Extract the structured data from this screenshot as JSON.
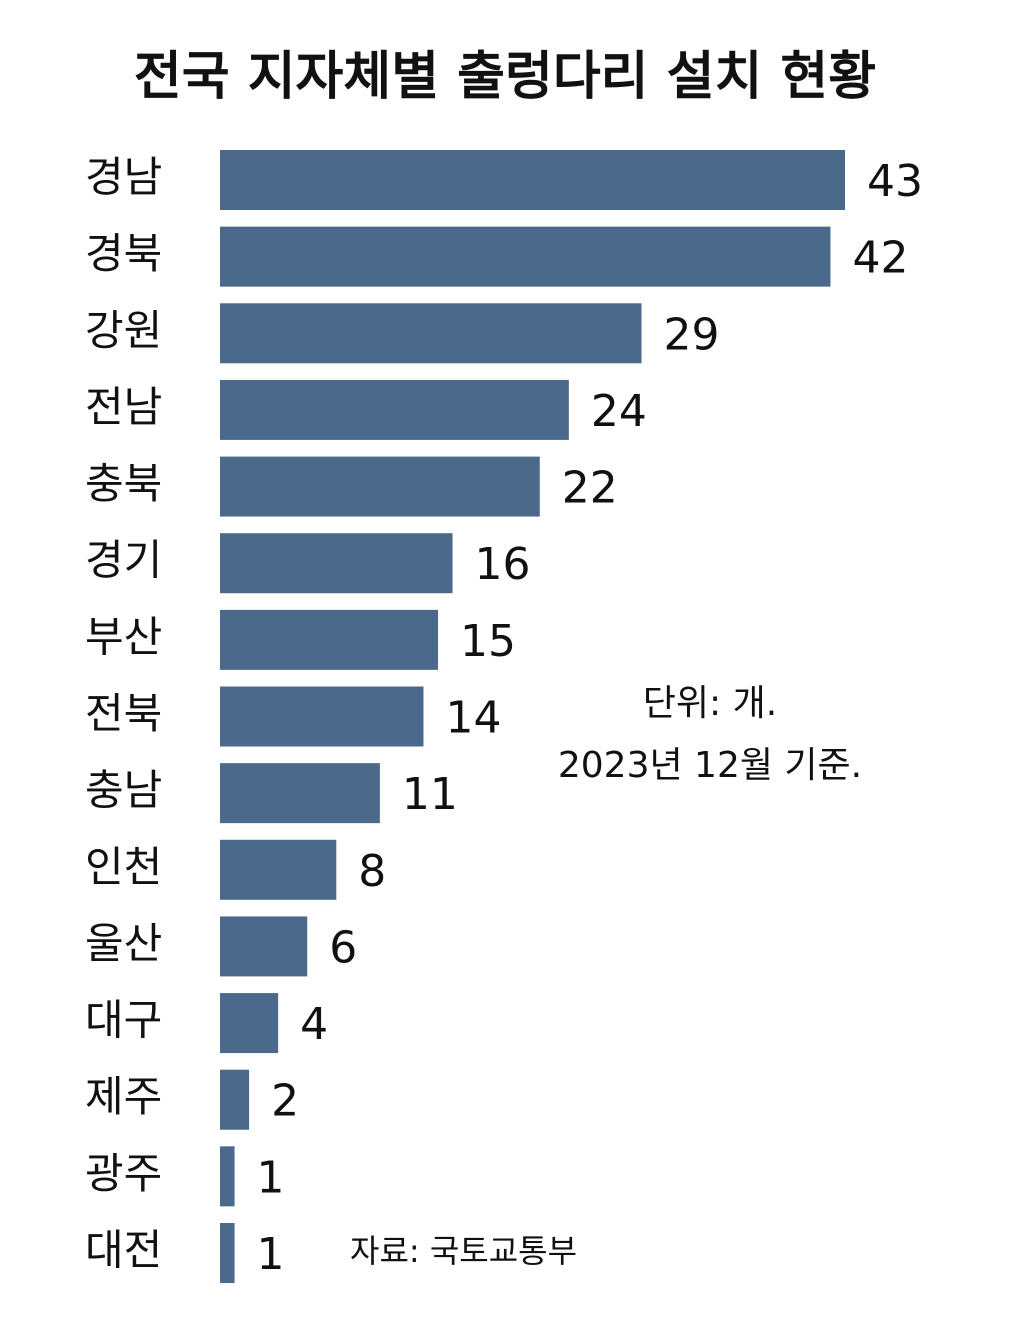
{
  "chart_data": {
    "type": "bar",
    "orientation": "horizontal",
    "title": "전국 지자체별 출렁다리 설치 현황",
    "categories": [
      "경남",
      "경북",
      "강원",
      "전남",
      "충북",
      "경기",
      "부산",
      "전북",
      "충남",
      "인천",
      "울산",
      "대구",
      "제주",
      "광주",
      "대전"
    ],
    "values": [
      43,
      42,
      29,
      24,
      22,
      16,
      15,
      14,
      11,
      8,
      6,
      4,
      2,
      1,
      1
    ],
    "color": "#4b6a8b",
    "notes": [
      "단위: 개.",
      "2023년 12월 기준."
    ],
    "source": "자료: 국토교통부"
  }
}
